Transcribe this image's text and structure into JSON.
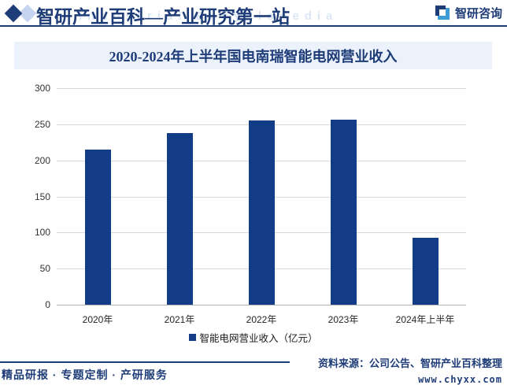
{
  "header": {
    "brand_title": "智研产业百科—产业研究第一站",
    "watermark": "Industrial Encyclopedia",
    "logo_text": "智研咨询"
  },
  "chart_data": {
    "type": "bar",
    "title": "2020-2024年上半年国电南瑞智能电网营业收入",
    "categories": [
      "2020年",
      "2021年",
      "2022年",
      "2023年",
      "2024年上半年"
    ],
    "values": [
      215,
      238,
      255,
      256,
      93
    ],
    "legend": "智能电网营业收入（亿元）",
    "xlabel": "",
    "ylabel": "",
    "ylim": [
      0,
      300
    ],
    "ytick_step": 50,
    "grid": true,
    "legend_position": "bottom"
  },
  "footer": {
    "slogan": "精品研报 · 专题定制 · 产研服务",
    "source": "资料来源：公司公告、智研产业百科整理",
    "website": "www.chyxx.com"
  },
  "colors": {
    "navy": "#1e3c78",
    "bar": "#123c85",
    "band_bg": "#ecf2fc",
    "grid": "#d9d9d9",
    "axis_line": "#b3b3b3",
    "tick_text": "#333333",
    "watermark": "#dce7f6",
    "light_diamond": "#c7d4ef",
    "logo_light_blue": "#3d9bd5"
  }
}
